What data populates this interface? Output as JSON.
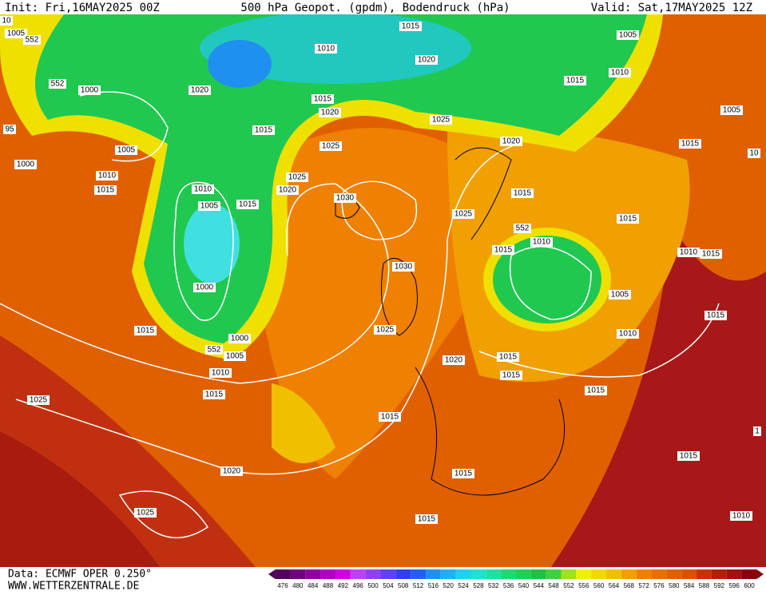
{
  "header": {
    "init": "Init: Fri,16MAY2025 00Z",
    "title": "500 hPa Geopot. (gpdm), Bodendruck (hPa)",
    "valid": "Valid: Sat,17MAY2025 12Z"
  },
  "isobar_labels": [
    "10",
    "1005",
    "552",
    "552",
    "1000",
    "95",
    "1005",
    "1000",
    "1010",
    "1015",
    "1010",
    "1005",
    "1000",
    "1015",
    "552",
    "1000",
    "1005",
    "1010",
    "1015",
    "1025",
    "1020",
    "1025",
    "1015",
    "1015",
    "1015",
    "1020",
    "1025",
    "1030",
    "1030",
    "1020",
    "1025",
    "1015",
    "1015",
    "1025",
    "1020",
    "1015",
    "1010",
    "1020",
    "1015",
    "1020",
    "1025",
    "1020",
    "1025",
    "1015",
    "552",
    "1010",
    "1015",
    "1005",
    "1010",
    "1015",
    "1015",
    "1015",
    "1005",
    "1010",
    "1015",
    "1005",
    "1015",
    "10",
    "1015",
    "1010",
    "1015",
    "1015",
    "1015",
    "1010",
    "1"
  ],
  "colorbar": {
    "values": [
      476,
      480,
      484,
      488,
      492,
      496,
      500,
      504,
      508,
      512,
      516,
      520,
      524,
      528,
      532,
      536,
      540,
      544,
      548,
      552,
      556,
      560,
      564,
      568,
      572,
      576,
      580,
      584,
      588,
      592,
      596,
      600
    ],
    "colors": [
      "#50005a",
      "#700080",
      "#9000a0",
      "#b000c0",
      "#d000e0",
      "#c040f0",
      "#9040f0",
      "#6040f0",
      "#3040f0",
      "#2060f0",
      "#2090f0",
      "#20b0f0",
      "#20d0f0",
      "#20e0d0",
      "#20e0a0",
      "#20d870",
      "#20d050",
      "#20c040",
      "#40d040",
      "#a0e020",
      "#f0f000",
      "#f0d800",
      "#f0c000",
      "#f0a000",
      "#f08000",
      "#e87000",
      "#e06000",
      "#d85000",
      "#c83000",
      "#b02000",
      "#a01010",
      "#880010"
    ]
  },
  "footer": {
    "source": "Data: ECMWF OPER 0.250°",
    "site": "WWW.WETTERZENTRALE.DE"
  }
}
